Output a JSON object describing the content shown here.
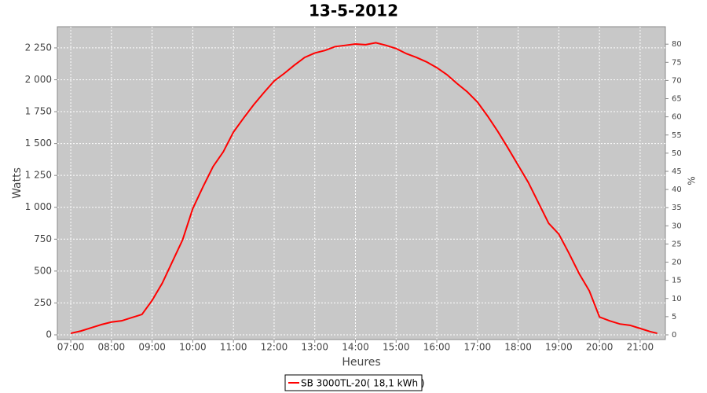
{
  "chart_data": {
    "type": "line",
    "title": "13-5-2012",
    "x_label": "Heures",
    "y_label": "Watts",
    "y2_label": "%",
    "x": [
      7,
      7.25,
      7.5,
      7.75,
      8,
      8.25,
      8.5,
      8.75,
      9,
      9.25,
      9.5,
      9.75,
      10,
      10.25,
      10.5,
      10.75,
      11,
      11.25,
      11.5,
      11.75,
      12,
      12.25,
      12.5,
      12.75,
      13,
      13.25,
      13.5,
      13.75,
      14,
      14.25,
      14.5,
      14.75,
      15,
      15.25,
      15.5,
      15.75,
      16,
      16.25,
      16.5,
      16.75,
      17,
      17.25,
      17.5,
      17.75,
      18,
      18.25,
      18.5,
      18.75,
      19,
      19.25,
      19.5,
      19.75,
      20,
      20.25,
      20.5,
      20.75,
      21,
      21.25,
      21.42
    ],
    "series": [
      {
        "name": "SB 3000TL-20( 18,1 kWh )",
        "color": "#ff0000",
        "values": [
          12,
          30,
          55,
          80,
          100,
          110,
          135,
          160,
          270,
          405,
          575,
          745,
          990,
          1160,
          1320,
          1435,
          1590,
          1700,
          1805,
          1900,
          1990,
          2050,
          2115,
          2175,
          2210,
          2230,
          2260,
          2270,
          2280,
          2275,
          2290,
          2270,
          2245,
          2205,
          2175,
          2140,
          2095,
          2040,
          1970,
          1905,
          1825,
          1715,
          1595,
          1465,
          1330,
          1195,
          1035,
          875,
          790,
          640,
          480,
          345,
          140,
          110,
          85,
          75,
          50,
          25,
          12
        ]
      }
    ],
    "xlim": [
      6.67,
      21.62
    ],
    "xticks": [
      {
        "value": 7,
        "label": "07:00"
      },
      {
        "value": 8,
        "label": "08:00"
      },
      {
        "value": 9,
        "label": "09:00"
      },
      {
        "value": 10,
        "label": "10:00"
      },
      {
        "value": 11,
        "label": "11:00"
      },
      {
        "value": 12,
        "label": "12:00"
      },
      {
        "value": 13,
        "label": "13:00"
      },
      {
        "value": 14,
        "label": "14:00"
      },
      {
        "value": 15,
        "label": "15:00"
      },
      {
        "value": 16,
        "label": "16:00"
      },
      {
        "value": 17,
        "label": "17:00"
      },
      {
        "value": 18,
        "label": "18:00"
      },
      {
        "value": 19,
        "label": "19:00"
      },
      {
        "value": 20,
        "label": "20:00"
      },
      {
        "value": 21,
        "label": "21:00"
      }
    ],
    "ylim": [
      -37,
      2416
    ],
    "yticks": [
      0,
      250,
      500,
      750,
      {
        "value": 1000,
        "label": "1 000"
      },
      {
        "value": 1250,
        "label": "1 250"
      },
      {
        "value": 1500,
        "label": "1 500"
      },
      {
        "value": 1750,
        "label": "1 750"
      },
      {
        "value": 2000,
        "label": "2 000"
      },
      {
        "value": 2250,
        "label": "2 250"
      }
    ],
    "y2lim": [
      -1.3,
      84.8
    ],
    "y2ticks": [
      0,
      5,
      10,
      15,
      20,
      25,
      30,
      35,
      40,
      45,
      50,
      55,
      60,
      65,
      70,
      75,
      80
    ],
    "grid": true,
    "legend": "bottom"
  }
}
